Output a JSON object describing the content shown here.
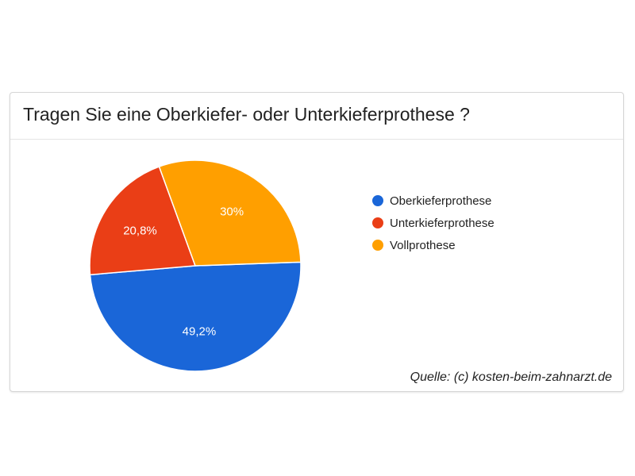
{
  "colors": {
    "oberkiefer": "#1a66d8",
    "unterkiefer": "#ea3e16",
    "voll": "#ff9f00"
  },
  "chart_data": {
    "type": "pie",
    "title": "Tragen Sie eine Oberkiefer- oder Unterkieferprothese ?",
    "slices": [
      {
        "label": "Oberkieferprothese",
        "value": 49.2,
        "display": "49,2%",
        "color": "#1a66d8"
      },
      {
        "label": "Unterkieferprothese",
        "value": 20.8,
        "display": "20,8%",
        "color": "#ea3e16"
      },
      {
        "label": "Vollprothese",
        "value": 30,
        "display": "30%",
        "color": "#ff9f00"
      }
    ],
    "legend_position": "right",
    "source": "Quelle: (c) kosten-beim-zahnarzt.de"
  }
}
